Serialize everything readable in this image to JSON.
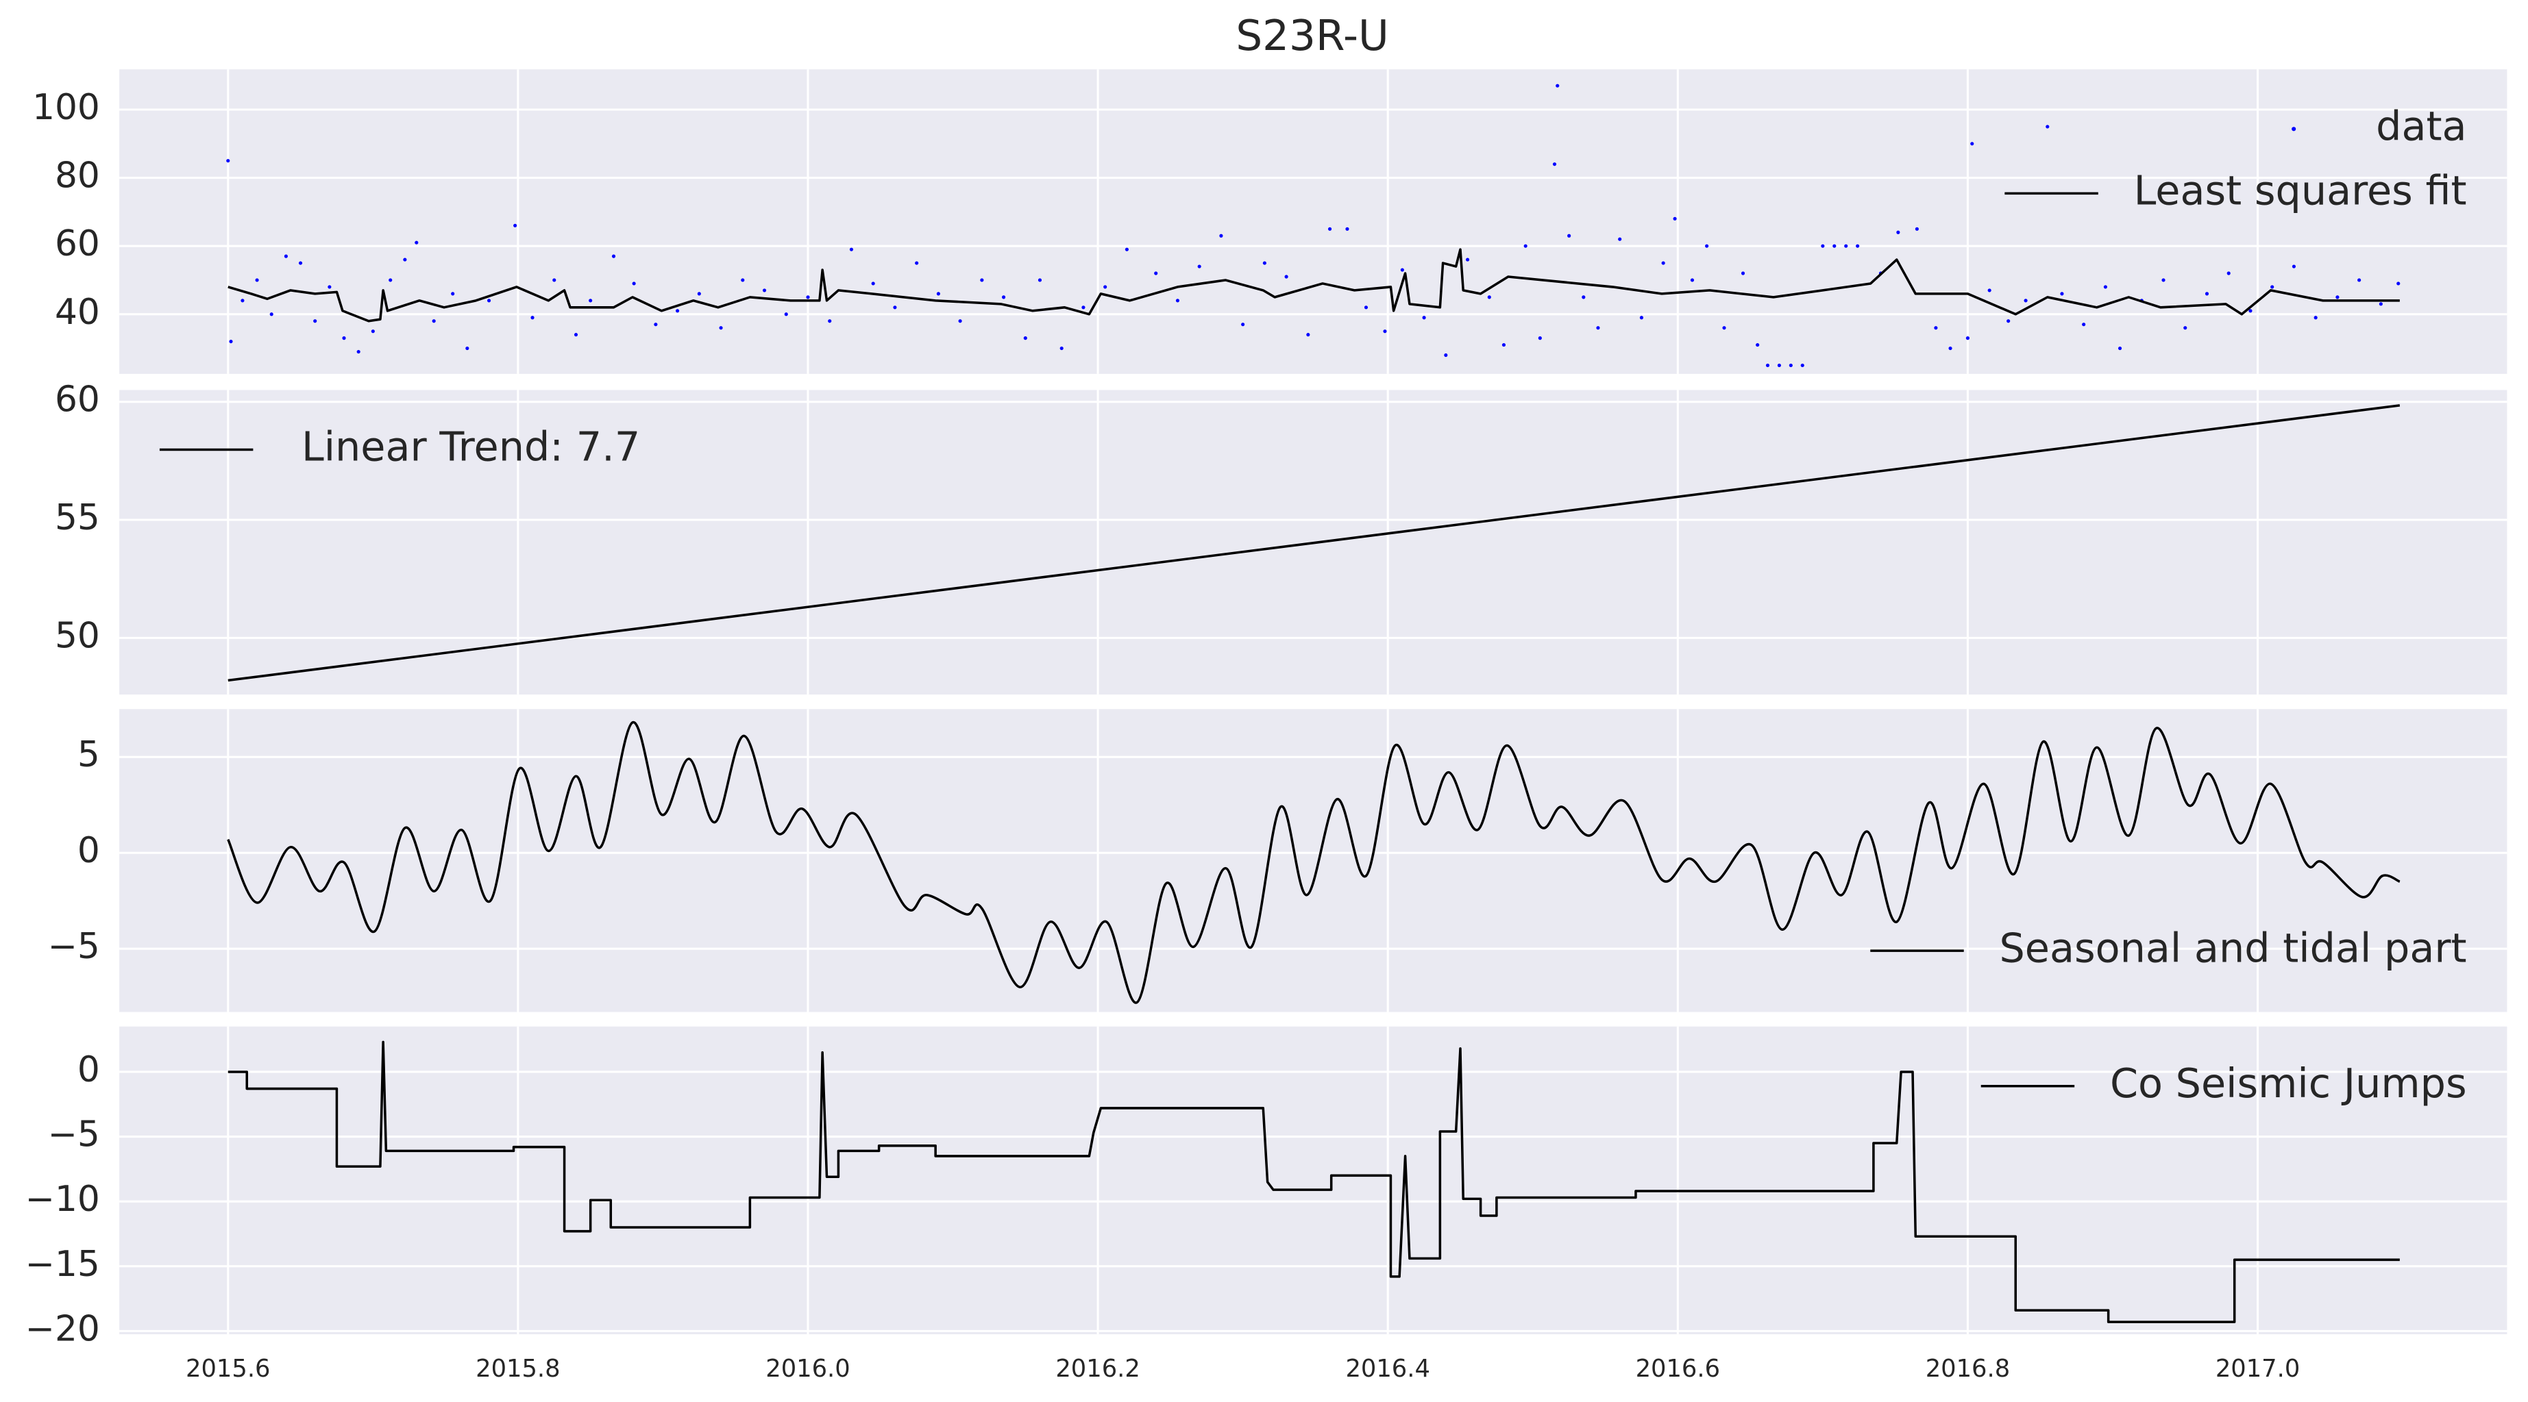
{
  "chart_data": [
    {
      "type": "line",
      "title": "S23R-U",
      "xlim": [
        2015.525,
        2017.172
      ],
      "xticks": [
        2015.6,
        2015.8,
        2016,
        2016.2,
        2016.4,
        2016.6,
        2016.8,
        2017
      ],
      "ylim": [
        22.5,
        111.8
      ],
      "yticks": [
        40,
        60,
        80,
        100
      ],
      "grid": true,
      "legend": "upper right",
      "series": [
        {
          "name": "data",
          "type": "scatter",
          "color": "#0000ff",
          "x": [
            2015.6,
            2015.602,
            2015.61,
            2015.62,
            2015.63,
            2015.64,
            2015.65,
            2015.66,
            2015.67,
            2015.68,
            2015.69,
            2015.7,
            2015.712,
            2015.722,
            2015.73,
            2015.742,
            2015.755,
            2015.765,
            2015.78,
            2015.798,
            2015.81,
            2015.825,
            2015.84,
            2015.85,
            2015.866,
            2015.88,
            2015.895,
            2015.91,
            2015.925,
            2015.94,
            2015.955,
            2015.97,
            2015.985,
            2016.0,
            2016.015,
            2016.03,
            2016.045,
            2016.06,
            2016.075,
            2016.09,
            2016.105,
            2016.12,
            2016.135,
            2016.15,
            2016.16,
            2016.175,
            2016.19,
            2016.205,
            2016.22,
            2016.24,
            2016.255,
            2016.27,
            2016.285,
            2016.3,
            2016.315,
            2016.33,
            2016.345,
            2016.36,
            2016.372,
            2016.385,
            2016.398,
            2016.41,
            2016.425,
            2016.44,
            2016.455,
            2016.47,
            2016.48,
            2016.495,
            2016.505,
            2016.515,
            2016.517,
            2016.525,
            2016.535,
            2016.545,
            2016.56,
            2016.575,
            2016.59,
            2016.598,
            2016.61,
            2016.62,
            2016.632,
            2016.645,
            2016.655,
            2016.662,
            2016.67,
            2016.678,
            2016.686,
            2016.7,
            2016.708,
            2016.716,
            2016.724,
            2016.74,
            2016.752,
            2016.765,
            2016.778,
            2016.788,
            2016.8,
            2016.803,
            2016.815,
            2016.828,
            2016.84,
            2016.855,
            2016.865,
            2016.88,
            2016.895,
            2016.905,
            2016.92,
            2016.935,
            2016.95,
            2016.965,
            2016.98,
            2016.995,
            2017.01,
            2017.025,
            2017.04,
            2017.055,
            2017.07,
            2017.085,
            2017.097
          ],
          "values": [
            85,
            32,
            44,
            50,
            40,
            57,
            55,
            38,
            48,
            33,
            29,
            35,
            50,
            56,
            61,
            38,
            46,
            30,
            44,
            66,
            39,
            50,
            34,
            44,
            57,
            49,
            37,
            41,
            46,
            36,
            50,
            47,
            40,
            45,
            38,
            59,
            49,
            42,
            55,
            46,
            38,
            50,
            45,
            33,
            50,
            30,
            42,
            48,
            59,
            52,
            44,
            54,
            63,
            37,
            55,
            51,
            34,
            65,
            65,
            42,
            35,
            53,
            39,
            28,
            56,
            45,
            31,
            60,
            33,
            84,
            107,
            63,
            45,
            36,
            62,
            39,
            55,
            68,
            50,
            60,
            36,
            52,
            31,
            25,
            25,
            25,
            25,
            60,
            60,
            60,
            60,
            52,
            64,
            65,
            36,
            30,
            33,
            90,
            47,
            38,
            44,
            95,
            46,
            37,
            48,
            30,
            44,
            50,
            36,
            46,
            52,
            41,
            48,
            54,
            39,
            45,
            50,
            43,
            49
          ]
        },
        {
          "name": "Least squares fit",
          "type": "line",
          "color": "#000000",
          "x": [
            2015.6,
            2015.616,
            2015.627,
            2015.643,
            2015.66,
            2015.675,
            2015.679,
            2015.697,
            2015.705,
            2015.707,
            2015.71,
            2015.732,
            2015.749,
            2015.771,
            2015.799,
            2015.821,
            2015.832,
            2015.836,
            2015.866,
            2015.879,
            2015.899,
            2015.921,
            2015.938,
            2015.96,
            2015.988,
            2016.008,
            2016.01,
            2016.013,
            2016.021,
            2016.044,
            2016.088,
            2016.133,
            2016.155,
            2016.177,
            2016.194,
            2016.202,
            2016.222,
            2016.255,
            2016.288,
            2016.314,
            2016.322,
            2016.355,
            2016.377,
            2016.402,
            2016.404,
            2016.412,
            2016.415,
            2016.436,
            2016.438,
            2016.447,
            2016.45,
            2016.452,
            2016.464,
            2016.483,
            2016.555,
            2016.589,
            2016.622,
            2016.666,
            2016.7,
            2016.733,
            2016.751,
            2016.764,
            2016.8,
            2016.833,
            2016.855,
            2016.889,
            2016.911,
            2016.933,
            2016.978,
            2016.989,
            2017.009,
            2017.045,
            2017.098
          ],
          "values": [
            48,
            46,
            44.5,
            47,
            46,
            46.5,
            41,
            38,
            38.5,
            47,
            41,
            44,
            42,
            44,
            48,
            44,
            47,
            42,
            42,
            45,
            41,
            44,
            42,
            45,
            44,
            44,
            53,
            44,
            47,
            46,
            44,
            43,
            41,
            42,
            40,
            46,
            44,
            48,
            50,
            47,
            45,
            49,
            47,
            48,
            41,
            52,
            43,
            42,
            55,
            54,
            59,
            47,
            46,
            51,
            48,
            46,
            47,
            45,
            47,
            49,
            56,
            46,
            46,
            40,
            45,
            42,
            45,
            42,
            43,
            40,
            47,
            44,
            44
          ]
        }
      ]
    },
    {
      "type": "line",
      "xlim": [
        2015.525,
        2017.172
      ],
      "xticks": [
        2015.6,
        2015.8,
        2016,
        2016.2,
        2016.4,
        2016.6,
        2016.8,
        2017
      ],
      "ylim": [
        47.6,
        60.5
      ],
      "yticks": [
        50,
        55,
        60
      ],
      "grid": true,
      "legend": "upper left",
      "series": [
        {
          "name": "Linear Trend: 7.7",
          "type": "line",
          "color": "#000000",
          "x": [
            2015.6,
            2017.098
          ],
          "values": [
            48.2,
            59.85
          ]
        }
      ]
    },
    {
      "type": "line",
      "xlim": [
        2015.525,
        2017.172
      ],
      "xticks": [
        2015.6,
        2015.8,
        2016,
        2016.2,
        2016.4,
        2016.6,
        2016.8,
        2017
      ],
      "ylim": [
        -8.3,
        7.5
      ],
      "yticks": [
        {
          "value": -5,
          "label": "−5"
        },
        0,
        5
      ],
      "grid": true,
      "legend": "lower right",
      "smooth": true,
      "series": [
        {
          "name": "Seasonal and tidal part",
          "type": "line",
          "color": "#000000",
          "x": [
            2015.6,
            2015.62,
            2015.643,
            2015.663,
            2015.68,
            2015.701,
            2015.722,
            2015.742,
            2015.761,
            2015.781,
            2015.801,
            2015.821,
            2015.84,
            2015.857,
            2015.879,
            2015.899,
            2015.918,
            2015.936,
            2015.956,
            2015.978,
            2015.996,
            2016.015,
            2016.033,
            2016.067,
            2016.082,
            2016.109,
            2016.12,
            2016.146,
            2016.167,
            2016.187,
            2016.206,
            2016.227,
            2016.247,
            2016.266,
            2016.288,
            2016.306,
            2016.326,
            2016.344,
            2016.365,
            2016.385,
            2016.405,
            2016.425,
            2016.442,
            2016.462,
            2016.482,
            2016.505,
            2016.52,
            2016.539,
            2016.563,
            2016.589,
            2016.608,
            2016.626,
            2016.651,
            2016.672,
            2016.694,
            2016.713,
            2016.731,
            2016.751,
            2016.773,
            2016.789,
            2016.811,
            2016.832,
            2016.852,
            2016.871,
            2016.889,
            2016.911,
            2016.93,
            2016.952,
            2016.967,
            2016.988,
            2017.009,
            2017.033,
            2017.045,
            2017.072,
            2017.086,
            2017.098
          ],
          "values": [
            0.7,
            -2.6,
            0.3,
            -2.0,
            -0.5,
            -4.1,
            1.3,
            -2.0,
            1.2,
            -2.5,
            4.4,
            0.1,
            4.0,
            0.3,
            6.8,
            2.0,
            4.9,
            1.6,
            6.1,
            1.1,
            2.3,
            0.3,
            2.0,
            -2.8,
            -2.2,
            -3.2,
            -2.9,
            -7.0,
            -3.6,
            -6.0,
            -3.6,
            -7.8,
            -1.6,
            -4.9,
            -0.8,
            -4.9,
            2.4,
            -2.2,
            2.8,
            -1.2,
            5.6,
            1.5,
            4.2,
            1.2,
            5.6,
            1.4,
            2.4,
            0.9,
            2.7,
            -1.4,
            -0.3,
            -1.5,
            0.4,
            -4.0,
            0.0,
            -2.2,
            1.1,
            -3.6,
            2.6,
            -0.8,
            3.6,
            -1.1,
            5.8,
            0.6,
            5.5,
            0.9,
            6.5,
            2.5,
            4.1,
            0.5,
            3.6,
            -0.5,
            -0.5,
            -2.3,
            -1.2,
            -1.5
          ]
        }
      ]
    },
    {
      "type": "line",
      "xlim": [
        2015.525,
        2017.172
      ],
      "xticks": [
        {
          "value": 2015.6,
          "label": "2015.6"
        },
        {
          "value": 2015.8,
          "label": "2015.8"
        },
        {
          "value": 2016.0,
          "label": "2016.0"
        },
        {
          "value": 2016.2,
          "label": "2016.2"
        },
        {
          "value": 2016.4,
          "label": "2016.4"
        },
        {
          "value": 2016.6,
          "label": "2016.6"
        },
        {
          "value": 2016.8,
          "label": "2016.8"
        },
        {
          "value": 2017.0,
          "label": "2017.0"
        }
      ],
      "ylim": [
        -20.25,
        3.5
      ],
      "yticks": [
        {
          "value": -20,
          "label": "−20"
        },
        {
          "value": -15,
          "label": "−15"
        },
        {
          "value": -10,
          "label": "−10"
        },
        {
          "value": -5,
          "label": "−5"
        },
        0
      ],
      "grid": true,
      "legend": "upper right",
      "series": [
        {
          "name": "Co Seismic Jumps",
          "type": "line",
          "color": "#000000",
          "x": [
            2015.6,
            2015.613,
            2015.613,
            2015.675,
            2015.675,
            2015.705,
            2015.707,
            2015.709,
            2015.797,
            2015.797,
            2015.832,
            2015.832,
            2015.85,
            2015.85,
            2015.864,
            2015.864,
            2015.96,
            2015.96,
            2016.008,
            2016.01,
            2016.013,
            2016.021,
            2016.021,
            2016.049,
            2016.049,
            2016.088,
            2016.088,
            2016.194,
            2016.197,
            2016.202,
            2016.314,
            2016.317,
            2016.321,
            2016.361,
            2016.361,
            2016.402,
            2016.402,
            2016.408,
            2016.412,
            2016.415,
            2016.436,
            2016.436,
            2016.447,
            2016.45,
            2016.452,
            2016.464,
            2016.464,
            2016.475,
            2016.475,
            2016.571,
            2016.571,
            2016.735,
            2016.735,
            2016.751,
            2016.754,
            2016.762,
            2016.764,
            2016.833,
            2016.833,
            2016.897,
            2016.897,
            2016.984,
            2016.984,
            2017.098
          ],
          "values": [
            0,
            0,
            -1.3,
            -1.3,
            -7.3,
            -7.3,
            2.3,
            -6.1,
            -6.1,
            -5.8,
            -5.8,
            -12.3,
            -12.3,
            -9.9,
            -9.9,
            -12.0,
            -12.0,
            -9.7,
            -9.7,
            1.5,
            -8.1,
            -8.1,
            -6.1,
            -6.1,
            -5.7,
            -5.7,
            -6.5,
            -6.5,
            -4.7,
            -2.8,
            -2.8,
            -8.5,
            -9.1,
            -9.1,
            -8.0,
            -8.0,
            -15.8,
            -15.8,
            -6.5,
            -14.4,
            -14.4,
            -4.6,
            -4.6,
            1.8,
            -9.8,
            -9.8,
            -11.1,
            -11.1,
            -9.7,
            -9.7,
            -9.2,
            -9.2,
            -5.5,
            -5.5,
            0,
            0,
            -12.7,
            -12.7,
            -18.4,
            -18.4,
            -19.3,
            -19.3,
            -14.5,
            -14.5
          ]
        }
      ]
    }
  ]
}
